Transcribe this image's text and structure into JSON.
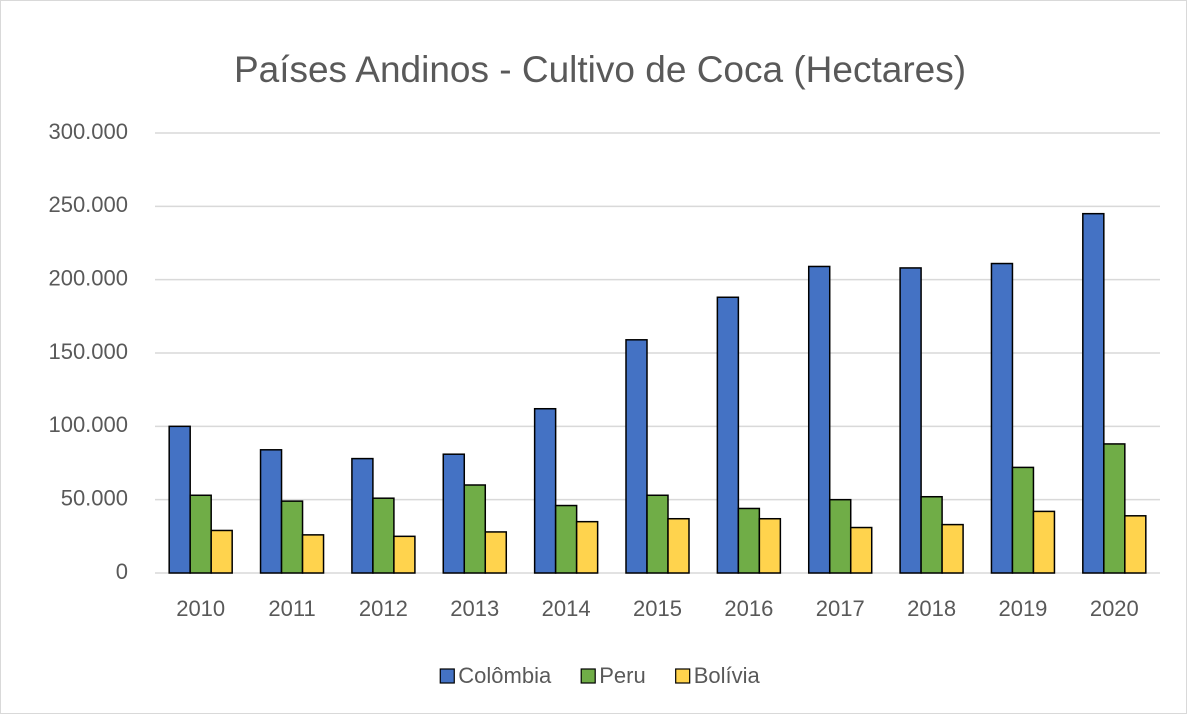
{
  "chart_data": {
    "type": "bar",
    "title": "Países Andinos - Cultivo de Coca (Hectares)",
    "categories": [
      "2010",
      "2011",
      "2012",
      "2013",
      "2014",
      "2015",
      "2016",
      "2017",
      "2018",
      "2019",
      "2020"
    ],
    "series": [
      {
        "name": "Colômbia",
        "color": "#4472c4",
        "values": [
          100000,
          84000,
          78000,
          81000,
          112000,
          159000,
          188000,
          209000,
          208000,
          211000,
          245000
        ]
      },
      {
        "name": "Peru",
        "color": "#70ad47",
        "values": [
          53000,
          49000,
          51000,
          60000,
          46000,
          53000,
          44000,
          50000,
          52000,
          72000,
          88000
        ]
      },
      {
        "name": "Bolívia",
        "color": "#ffd34d",
        "values": [
          29000,
          26000,
          25000,
          28000,
          35000,
          37000,
          37000,
          31000,
          33000,
          42000,
          39000
        ]
      }
    ],
    "ylim": [
      0,
      300000
    ],
    "yticks": [
      0,
      {
        "value": 50000,
        "label": "50.000"
      },
      {
        "value": 100000,
        "label": "100.000"
      },
      {
        "value": 150000,
        "label": "150.000"
      },
      {
        "value": 200000,
        "label": "200.000"
      },
      {
        "value": 250000,
        "label": "250.000"
      },
      {
        "value": 300000,
        "label": "300.000"
      }
    ],
    "grid": true,
    "legend": "bottom"
  }
}
